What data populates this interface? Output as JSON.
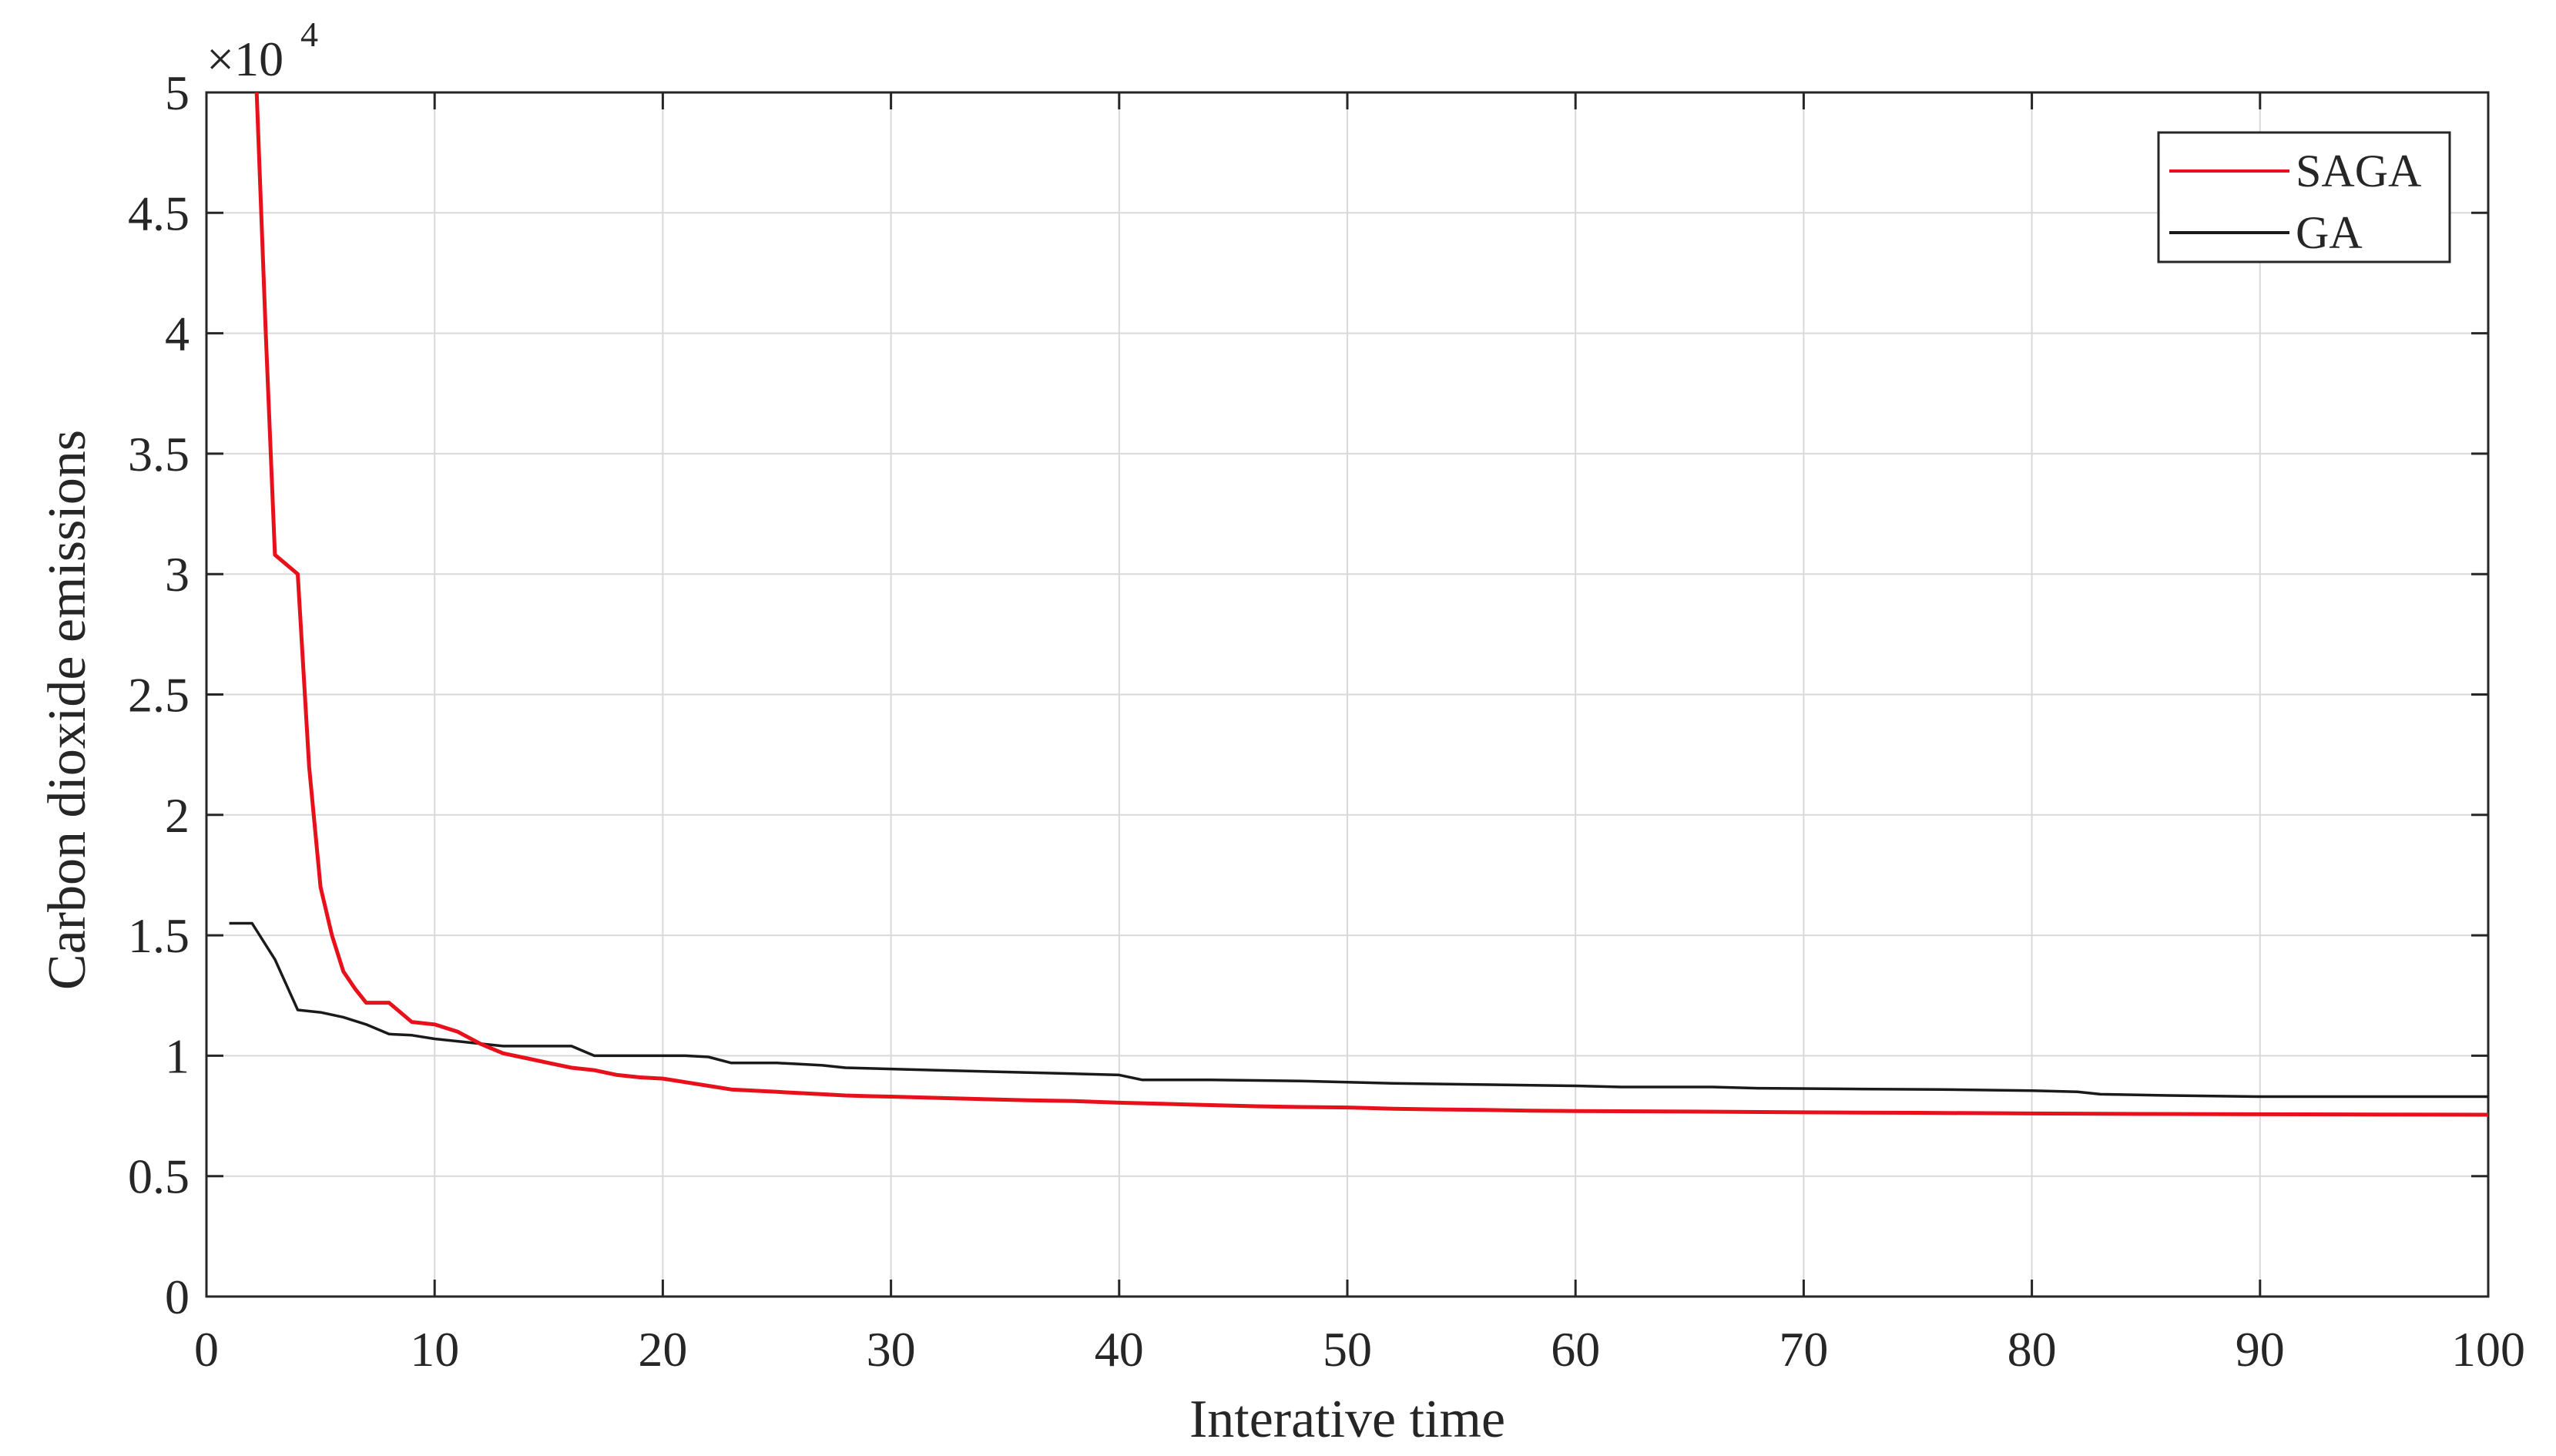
{
  "chart_data": {
    "type": "line",
    "title": "",
    "xlabel": "Interative time",
    "ylabel": "Carbon dioxide emissions",
    "y_multiplier": "×10",
    "y_multiplier_exp": "4",
    "xlim": [
      0,
      100
    ],
    "ylim": [
      0,
      5
    ],
    "x_ticks": [
      "0",
      "10",
      "20",
      "30",
      "40",
      "50",
      "60",
      "70",
      "80",
      "90",
      "100"
    ],
    "y_ticks": [
      "0",
      "0.5",
      "1",
      "1.5",
      "2",
      "2.5",
      "3",
      "3.5",
      "4",
      "4.5",
      "5"
    ],
    "grid": true,
    "legend_position": "top-right",
    "series": [
      {
        "name": "SAGA",
        "color": "#e8101a",
        "x": [
          2.2,
          2.6,
          3,
          3.5,
          4,
          4.5,
          5,
          5.5,
          6,
          6.5,
          7,
          7.5,
          8,
          8.5,
          9,
          10,
          11,
          12,
          13,
          14,
          15,
          16,
          17,
          18,
          19,
          20,
          21,
          22,
          23,
          24,
          25,
          26,
          27,
          28,
          29,
          30,
          32,
          34,
          36,
          38,
          40,
          42,
          44,
          46,
          48,
          50,
          52,
          54,
          56,
          58,
          60,
          65,
          70,
          75,
          80,
          85,
          90,
          95,
          100
        ],
        "y": [
          5.0,
          4.0,
          3.08,
          3.04,
          3.0,
          2.2,
          1.7,
          1.5,
          1.35,
          1.28,
          1.22,
          1.22,
          1.22,
          1.18,
          1.14,
          1.13,
          1.1,
          1.05,
          1.01,
          0.99,
          0.97,
          0.95,
          0.94,
          0.92,
          0.91,
          0.905,
          0.89,
          0.875,
          0.86,
          0.855,
          0.85,
          0.845,
          0.84,
          0.835,
          0.832,
          0.83,
          0.825,
          0.82,
          0.815,
          0.812,
          0.805,
          0.8,
          0.795,
          0.79,
          0.787,
          0.785,
          0.78,
          0.777,
          0.775,
          0.772,
          0.77,
          0.768,
          0.765,
          0.763,
          0.76,
          0.758,
          0.757,
          0.756,
          0.755
        ]
      },
      {
        "name": "GA",
        "color": "#1a1a1a",
        "x": [
          1,
          2,
          3,
          4,
          5,
          6,
          7,
          8,
          9,
          10,
          11,
          12,
          13,
          14,
          15,
          16,
          17,
          18,
          19,
          20,
          21,
          22,
          23,
          24,
          25,
          26,
          27,
          28,
          30,
          32,
          34,
          36,
          38,
          40,
          41,
          44,
          48,
          50,
          52,
          56,
          60,
          62,
          66,
          68,
          72,
          76,
          80,
          82,
          83,
          86,
          90,
          95,
          100
        ],
        "y": [
          1.55,
          1.55,
          1.4,
          1.19,
          1.18,
          1.16,
          1.13,
          1.09,
          1.085,
          1.07,
          1.06,
          1.05,
          1.04,
          1.04,
          1.04,
          1.04,
          1.0,
          1.0,
          1.0,
          1.0,
          1.0,
          0.995,
          0.97,
          0.97,
          0.97,
          0.965,
          0.96,
          0.95,
          0.945,
          0.94,
          0.935,
          0.93,
          0.925,
          0.92,
          0.9,
          0.9,
          0.895,
          0.89,
          0.885,
          0.88,
          0.875,
          0.87,
          0.87,
          0.865,
          0.862,
          0.86,
          0.855,
          0.85,
          0.84,
          0.835,
          0.83,
          0.83,
          0.83
        ]
      }
    ]
  }
}
